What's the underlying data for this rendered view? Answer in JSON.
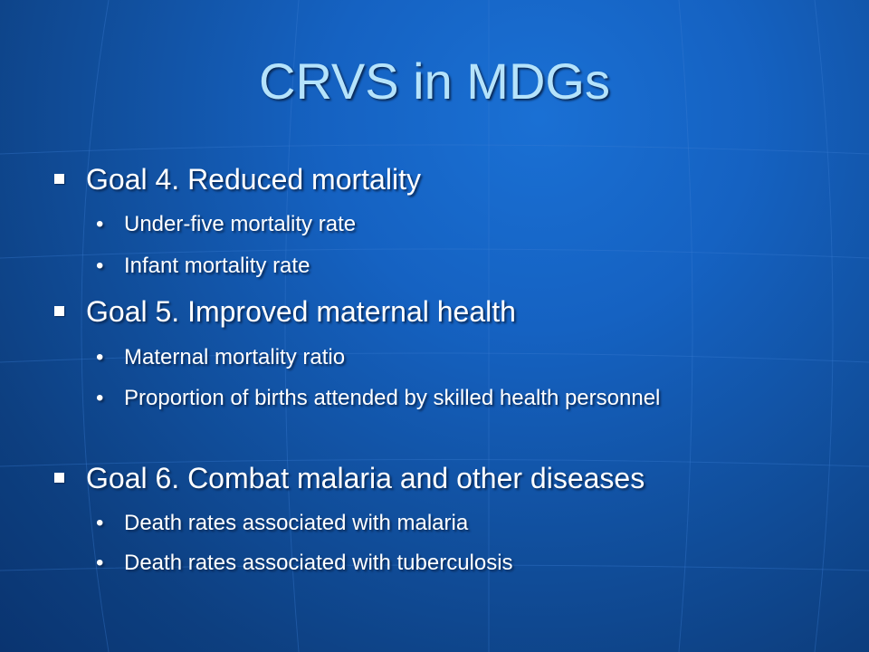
{
  "slide": {
    "title": "CRVS in MDGs",
    "goals": [
      {
        "label": "Goal 4. Reduced mortality",
        "items": [
          "Under-five mortality rate",
          "Infant mortality rate"
        ]
      },
      {
        "label": "Goal 5. Improved maternal health",
        "items": [
          "Maternal mortality ratio",
          "Proportion of births attended by skilled health personnel"
        ]
      },
      {
        "label": "Goal 6. Combat malaria and other diseases",
        "items": [
          "Death rates associated with malaria",
          "Death rates associated with tuberculosis"
        ]
      }
    ],
    "sub_bullet_glyph": "•"
  },
  "colors": {
    "background": "#1562c2",
    "title": "#b5e3fb",
    "text": "#ffffff"
  }
}
